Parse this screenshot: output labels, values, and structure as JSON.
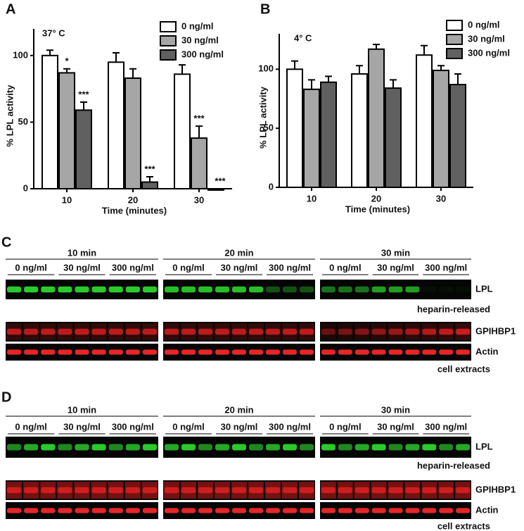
{
  "chart_data": [
    {
      "type": "bar",
      "panel": "A",
      "annotation": "37° C",
      "xlabel": "Time (minutes)",
      "ylabel": "% LPL activity",
      "categories": [
        "10",
        "20",
        "30"
      ],
      "ylim": [
        0,
        120
      ],
      "yticks": [
        0,
        50,
        100
      ],
      "series": [
        {
          "name": "0 ng/ml",
          "color": "#ffffff",
          "values": [
            100,
            95,
            86
          ],
          "errors": [
            4,
            7,
            7
          ],
          "annotations": [
            null,
            null,
            null
          ]
        },
        {
          "name": "30 ng/ml",
          "color": "#a6a6a6",
          "values": [
            87,
            83,
            38
          ],
          "errors": [
            3,
            7,
            9
          ],
          "annotations": [
            "*",
            null,
            "***"
          ]
        },
        {
          "name": "300 ng/ml",
          "color": "#606060",
          "values": [
            59,
            5,
            -1
          ],
          "errors": [
            6,
            4,
            1
          ],
          "annotations": [
            "***",
            "***",
            "***"
          ]
        }
      ]
    },
    {
      "type": "bar",
      "panel": "B",
      "annotation": "4° C",
      "xlabel": "Time (minutes)",
      "ylabel": "% LPL activity",
      "categories": [
        "10",
        "20",
        "30"
      ],
      "ylim": [
        0,
        130
      ],
      "yticks": [
        0,
        50,
        100
      ],
      "series": [
        {
          "name": "0 ng/ml",
          "color": "#ffffff",
          "values": [
            100,
            96,
            112
          ],
          "errors": [
            7,
            7,
            8
          ]
        },
        {
          "name": "30 ng/ml",
          "color": "#a6a6a6",
          "values": [
            83,
            117,
            99
          ],
          "errors": [
            8,
            4,
            4
          ]
        },
        {
          "name": "300 ng/ml",
          "color": "#606060",
          "values": [
            89,
            84,
            87
          ],
          "errors": [
            5,
            7,
            9
          ]
        }
      ]
    }
  ],
  "blots": [
    {
      "panel": "C",
      "timepoints": [
        "10 min",
        "20 min",
        "30 min"
      ],
      "doses": [
        "0 ng/ml",
        "30 ng/ml",
        "300 ng/ml"
      ],
      "rows": [
        "LPL",
        "GPIHBP1",
        "Actin"
      ],
      "notes": [
        "heparin-released",
        "cell extracts"
      ]
    },
    {
      "panel": "D",
      "timepoints": [
        "10 min",
        "20 min",
        "30 min"
      ],
      "doses": [
        "0 ng/ml",
        "30 ng/ml",
        "300 ng/ml"
      ],
      "rows": [
        "LPL",
        "GPIHBP1",
        "Actin"
      ],
      "notes": [
        "heparin-released",
        "cell extracts"
      ]
    }
  ]
}
